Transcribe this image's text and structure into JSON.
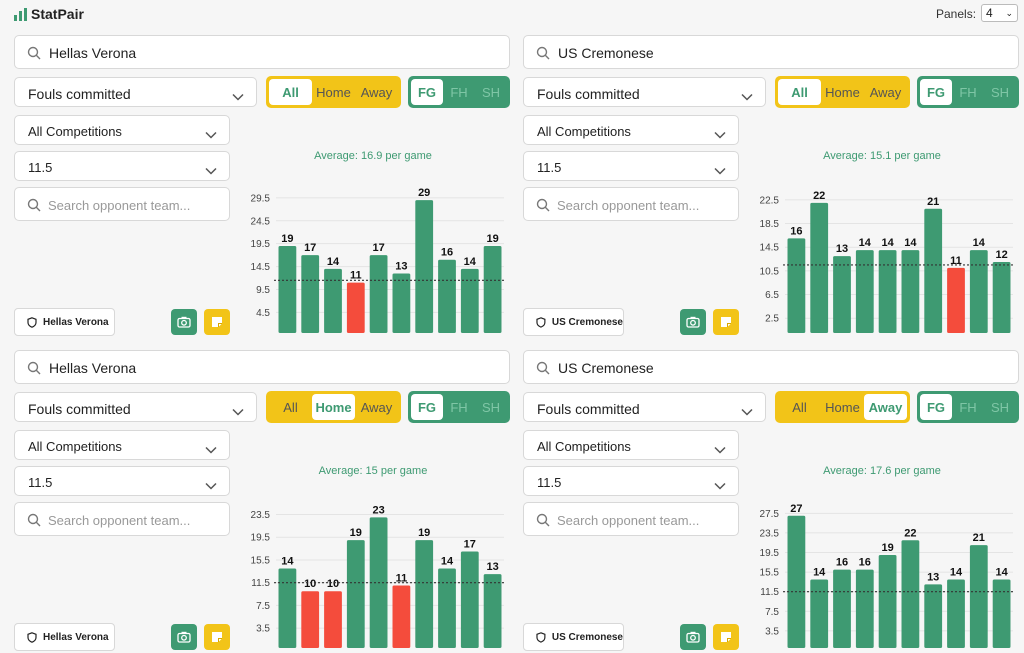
{
  "app": {
    "name": "StatPair"
  },
  "header": {
    "panels_label": "Panels:",
    "panels_value": "4"
  },
  "colors": {
    "green": "#3e9a72",
    "red": "#f44c3c",
    "yellow": "#f2c418"
  },
  "icons": {
    "logo": "bar-chart-icon",
    "search": "search-icon",
    "dropdown": "chevron-down-icon",
    "team": "shield-icon",
    "screenshot": "camera-icon",
    "note": "sticky-note-icon"
  },
  "panels": [
    {
      "team": "Hellas Verona",
      "stat": "Fouls committed",
      "location_options": [
        "All",
        "Home",
        "Away"
      ],
      "location_selected": "All",
      "half_options": [
        "FG",
        "FH",
        "SH"
      ],
      "half_selected": "FG",
      "competition": "All Competitions",
      "line": "11.5",
      "opponent_placeholder": "Search opponent team...",
      "average_text": "Average: 16.9 per game",
      "badge": "Hellas Verona",
      "chart_data": {
        "type": "bar",
        "line": 11.5,
        "y_ticks": [
          "29.5",
          "24.5",
          "19.5",
          "14.5",
          "9.5",
          "4.5"
        ],
        "ylim": [
          0,
          31
        ],
        "values": [
          19,
          17,
          14,
          11,
          17,
          13,
          29,
          16,
          14,
          19
        ]
      }
    },
    {
      "team": "US Cremonese",
      "stat": "Fouls committed",
      "location_options": [
        "All",
        "Home",
        "Away"
      ],
      "location_selected": "All",
      "half_options": [
        "FG",
        "FH",
        "SH"
      ],
      "half_selected": "FG",
      "competition": "All Competitions",
      "line": "11.5",
      "opponent_placeholder": "Search opponent team...",
      "average_text": "Average: 15.1 per game",
      "badge": "US Cremonese",
      "chart_data": {
        "type": "bar",
        "line": 11.5,
        "y_ticks": [
          "22.5",
          "18.5",
          "14.5",
          "10.5",
          "6.5",
          "2.5"
        ],
        "ylim": [
          0,
          24
        ],
        "values": [
          16,
          22,
          13,
          14,
          14,
          14,
          21,
          11,
          14,
          12
        ]
      }
    },
    {
      "team": "Hellas Verona",
      "stat": "Fouls committed",
      "location_options": [
        "All",
        "Home",
        "Away"
      ],
      "location_selected": "Home",
      "half_options": [
        "FG",
        "FH",
        "SH"
      ],
      "half_selected": "FG",
      "competition": "All Competitions",
      "line": "11.5",
      "opponent_placeholder": "Search opponent team...",
      "average_text": "Average: 15 per game",
      "badge": "Hellas Verona",
      "chart_data": {
        "type": "bar",
        "line": 11.5,
        "y_ticks": [
          "23.5",
          "19.5",
          "15.5",
          "11.5",
          "7.5",
          "3.5"
        ],
        "ylim": [
          0,
          25
        ],
        "values": [
          14,
          10,
          10,
          19,
          23,
          11,
          19,
          14,
          17,
          13
        ]
      }
    },
    {
      "team": "US Cremonese",
      "stat": "Fouls committed",
      "location_options": [
        "All",
        "Home",
        "Away"
      ],
      "location_selected": "Away",
      "half_options": [
        "FG",
        "FH",
        "SH"
      ],
      "half_selected": "FG",
      "competition": "All Competitions",
      "line": "11.5",
      "opponent_placeholder": "Search opponent team...",
      "average_text": "Average: 17.6 per game",
      "badge": "US Cremonese",
      "chart_data": {
        "type": "bar",
        "line": 11.5,
        "y_ticks": [
          "27.5",
          "23.5",
          "19.5",
          "15.5",
          "11.5",
          "7.5",
          "3.5"
        ],
        "ylim": [
          0,
          29
        ],
        "values": [
          27,
          14,
          16,
          16,
          19,
          22,
          13,
          14,
          21,
          14
        ]
      }
    }
  ]
}
